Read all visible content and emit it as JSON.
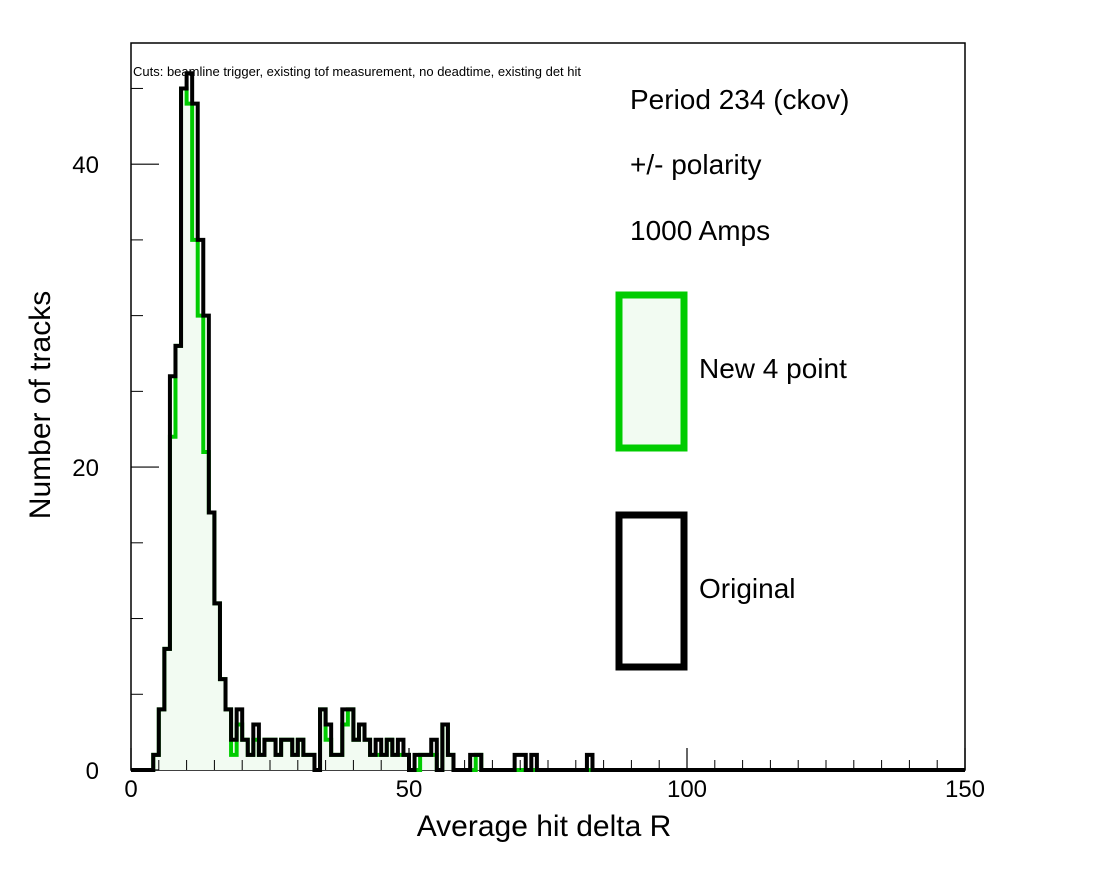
{
  "chart_data": {
    "type": "histogram",
    "xlabel": "Average hit delta R",
    "ylabel": "Number of tracks",
    "xlim": [
      0,
      150
    ],
    "ylim": [
      0,
      48
    ],
    "x_ticks": [
      {
        "value": 0,
        "label": "0"
      },
      {
        "value": 50,
        "label": "50"
      },
      {
        "value": 100,
        "label": "100"
      },
      {
        "value": 150,
        "label": "150"
      }
    ],
    "y_ticks": [
      {
        "value": 0,
        "label": "0"
      },
      {
        "value": 20,
        "label": "20"
      },
      {
        "value": 40,
        "label": "40"
      }
    ],
    "annotations": {
      "cuts": "Cuts: beamline trigger, existing tof measurement, no deadtime, existing det hit",
      "period": "Period 234 (ckov)",
      "polarity": "+/- polarity",
      "current": "1000 Amps"
    },
    "legend": {
      "placement": "right",
      "entries": [
        {
          "label": "New 4 point",
          "color": "#00cc00",
          "fill": "#f2fbf2"
        },
        {
          "label": "Original",
          "color": "#000000",
          "fill": "#ffffff"
        }
      ]
    },
    "series": [
      {
        "name": "New 4 point",
        "color": "#00cc00",
        "fill": "#f2fbf2",
        "bin_width": 1,
        "bin_start": 0,
        "counts": [
          0,
          0,
          0,
          0,
          1,
          4,
          8,
          22,
          28,
          45,
          44,
          35,
          30,
          21,
          17,
          11,
          6,
          4,
          1,
          3,
          2,
          1,
          2,
          1,
          2,
          2,
          1,
          2,
          2,
          1,
          2,
          1,
          1,
          0,
          4,
          2,
          1,
          1,
          3,
          4,
          2,
          3,
          2,
          1,
          1,
          1,
          2,
          1,
          1,
          1,
          0,
          0,
          1,
          1,
          1,
          0,
          3,
          1,
          0,
          0,
          0,
          0,
          1,
          0,
          0,
          0,
          0,
          0,
          0,
          0,
          0,
          0,
          0,
          0,
          0,
          0,
          0,
          0,
          0,
          0,
          0,
          0,
          0,
          0,
          0,
          0,
          0,
          0,
          0,
          0,
          0,
          0,
          0,
          0,
          0,
          0,
          0,
          0,
          0,
          0,
          0,
          0,
          0,
          0,
          0,
          0,
          0,
          0,
          0,
          0,
          0,
          0,
          0,
          0,
          0,
          0,
          0,
          0,
          0,
          0,
          0,
          0,
          0,
          0,
          0,
          0,
          0,
          0,
          0,
          0,
          0,
          0,
          0,
          0,
          0,
          0,
          0,
          0,
          0,
          0,
          0,
          0,
          0,
          0,
          0,
          0,
          0,
          0,
          0,
          0
        ]
      },
      {
        "name": "Original",
        "color": "#000000",
        "fill": "none",
        "bin_width": 1,
        "bin_start": 0,
        "counts": [
          0,
          0,
          0,
          0,
          1,
          4,
          8,
          26,
          28,
          45,
          46,
          44,
          35,
          30,
          17,
          11,
          6,
          4,
          2,
          4,
          2,
          1,
          3,
          1,
          2,
          2,
          1,
          2,
          2,
          1,
          2,
          1,
          1,
          0,
          4,
          3,
          1,
          1,
          4,
          4,
          2,
          3,
          2,
          1,
          2,
          1,
          2,
          1,
          2,
          1,
          0,
          1,
          1,
          1,
          2,
          0,
          3,
          1,
          0,
          0,
          0,
          1,
          1,
          0,
          0,
          0,
          0,
          0,
          0,
          1,
          1,
          0,
          1,
          0,
          0,
          0,
          0,
          0,
          0,
          0,
          0,
          0,
          1,
          0,
          0,
          0,
          0,
          0,
          0,
          0,
          0,
          0,
          0,
          0,
          0,
          0,
          0,
          0,
          0,
          0,
          0,
          0,
          0,
          0,
          0,
          0,
          0,
          0,
          0,
          0,
          0,
          0,
          0,
          0,
          0,
          0,
          0,
          0,
          0,
          0,
          0,
          0,
          0,
          0,
          0,
          0,
          0,
          0,
          0,
          0,
          0,
          0,
          0,
          0,
          0,
          0,
          0,
          0,
          0,
          0,
          0,
          0,
          0,
          0,
          0,
          0,
          0,
          0,
          0,
          0
        ]
      }
    ]
  }
}
